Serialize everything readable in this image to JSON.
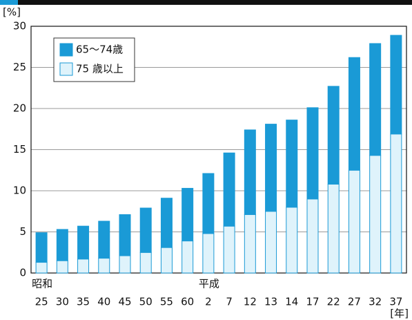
{
  "chart_data": {
    "type": "stacked_bar",
    "y_unit": "[%]",
    "x_unit": "[年]",
    "categories": [
      "25",
      "30",
      "35",
      "40",
      "45",
      "50",
      "55",
      "60",
      "2",
      "7",
      "12",
      "13",
      "14",
      "17",
      "22",
      "27",
      "32",
      "37"
    ],
    "eras": [
      "昭和",
      null,
      null,
      null,
      null,
      null,
      null,
      null,
      "平成",
      null,
      null,
      null,
      null,
      null,
      null,
      null,
      null,
      null
    ],
    "series": [
      {
        "name": "65～74歳",
        "color": "#1a9ad6",
        "values": [
          3.6,
          3.8,
          4.0,
          4.5,
          5.0,
          5.4,
          6.0,
          6.4,
          7.3,
          8.9,
          10.3,
          10.6,
          10.6,
          11.1,
          11.9,
          13.7,
          13.6,
          12.0
        ]
      },
      {
        "name": "75 歳以上",
        "color": "#dff3fb",
        "values": [
          1.3,
          1.5,
          1.7,
          1.8,
          2.1,
          2.5,
          3.1,
          3.9,
          4.8,
          5.7,
          7.1,
          7.5,
          8.0,
          9.0,
          10.8,
          12.5,
          14.3,
          16.9
        ]
      }
    ],
    "ylim": [
      0,
      30
    ],
    "yticks": [
      0,
      5,
      10,
      15,
      20,
      25,
      30
    ],
    "grid": true
  }
}
